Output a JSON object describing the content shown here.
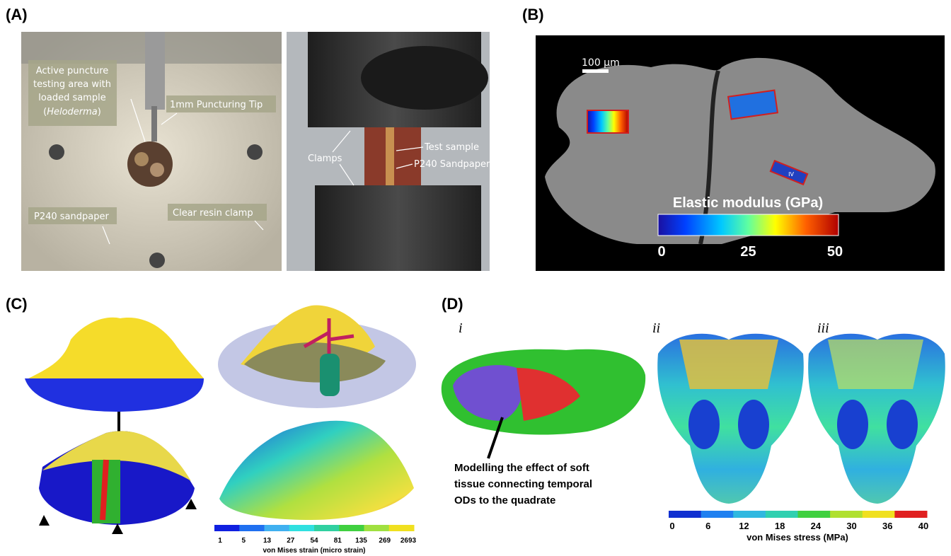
{
  "panel_a": {
    "label": "(A)",
    "puncture_lines": [
      "Active puncture",
      "testing area with",
      "loaded sample"
    ],
    "puncture_species": [
      "(",
      "Heloderma",
      ")"
    ],
    "tip": "1mm Puncturing Tip",
    "sandpaper_left": "P240 sandpaper",
    "resin": "Clear resin clamp",
    "clamps": "Clamps",
    "test_sample": "Test sample",
    "sandpaper_right": "P240 Sandpaper"
  },
  "panel_b": {
    "label": "(B)",
    "scale_bar": "100 µm",
    "roi": "IV",
    "colorbar_title": "Elastic modulus (GPa)",
    "colorbar_ticks": [
      0,
      25,
      50
    ]
  },
  "panel_c": {
    "label": "(C)",
    "colorbar_ticks": [
      1,
      5,
      13,
      27,
      54,
      81,
      135,
      269,
      2693
    ],
    "colorbar_title": "von Mises strain (micro strain)"
  },
  "panel_d": {
    "label": "(D)",
    "sub_labels": [
      "i",
      "ii",
      "iii"
    ],
    "annotation": [
      "Modelling the effect of soft",
      "tissue connecting temporal",
      "ODs to the quadrate"
    ],
    "colorbar_ticks": [
      0,
      6,
      12,
      18,
      24,
      30,
      36,
      40
    ],
    "colorbar_title": "von Mises stress (MPa)"
  }
}
